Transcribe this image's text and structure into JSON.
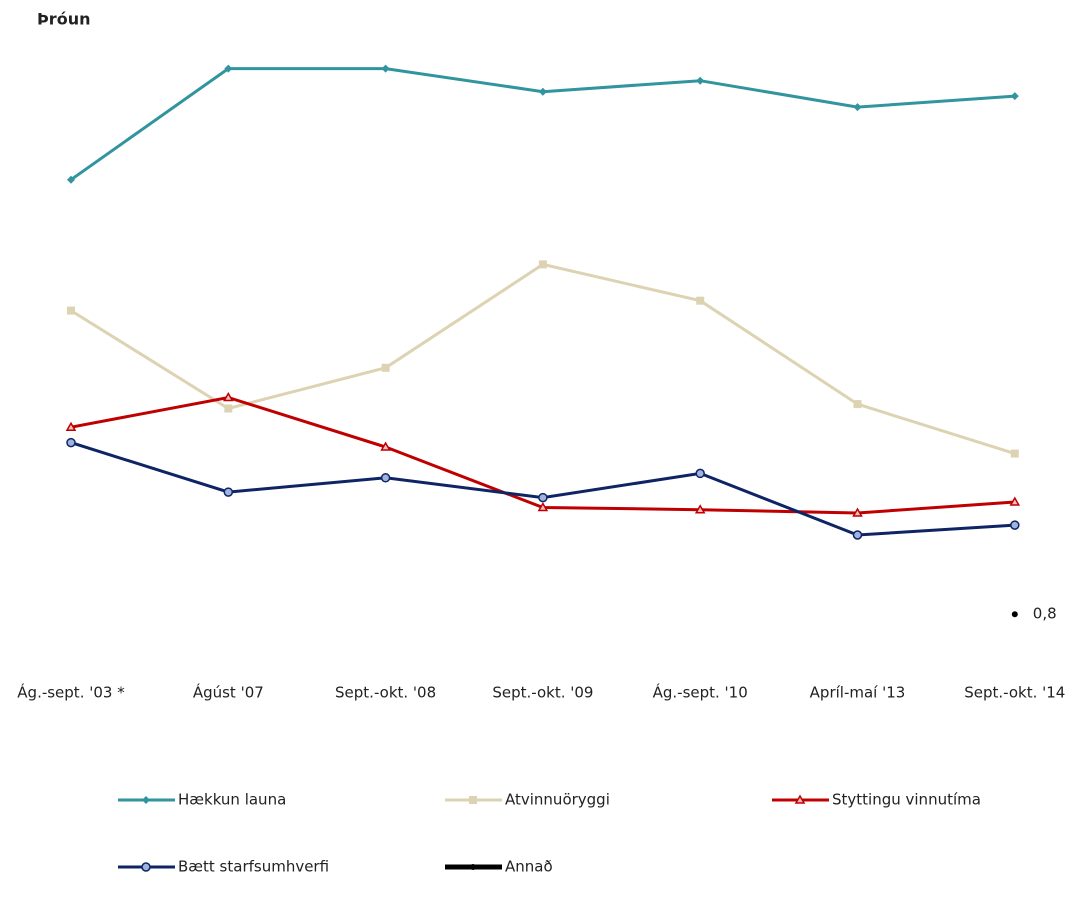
{
  "chart_data": {
    "type": "line",
    "title": "Þróun",
    "categories": [
      "Ág.-sept. '03 *",
      "Ágúst '07",
      "Sept.-okt. '08",
      "Sept.-okt. '09",
      "Ág.-sept. '10",
      "Apríl-maí '13",
      "Sept.-okt. '14"
    ],
    "ylim": [
      0,
      56
    ],
    "series": [
      {
        "name": "Hækkun launa",
        "color": "#31949f",
        "marker": "diamond",
        "values": [
          40.3,
          50.4,
          50.4,
          48.3,
          49.3,
          46.9,
          47.9
        ]
      },
      {
        "name": "Atvinnuöryggi",
        "color": "#ddd3b3",
        "marker": "square",
        "values": [
          28.4,
          19.5,
          23.2,
          32.6,
          29.3,
          19.9,
          15.4
        ]
      },
      {
        "name": "Styttingu vinnutíma",
        "color": "#c00000",
        "marker": "triangle",
        "values": [
          17.8,
          20.5,
          16.0,
          10.5,
          10.3,
          10.0,
          11.0
        ]
      },
      {
        "name": "Bætt starfsumhverfi",
        "color": "#0f2464",
        "marker": "circle",
        "values": [
          16.4,
          11.9,
          13.2,
          11.4,
          13.6,
          8.0,
          8.9
        ]
      },
      {
        "name": "Annað",
        "color": "#000000",
        "marker": "dot",
        "values": [
          null,
          null,
          null,
          null,
          null,
          null,
          0.8
        ],
        "value_labels": [
          null,
          null,
          null,
          null,
          null,
          null,
          "0,8"
        ]
      }
    ]
  }
}
